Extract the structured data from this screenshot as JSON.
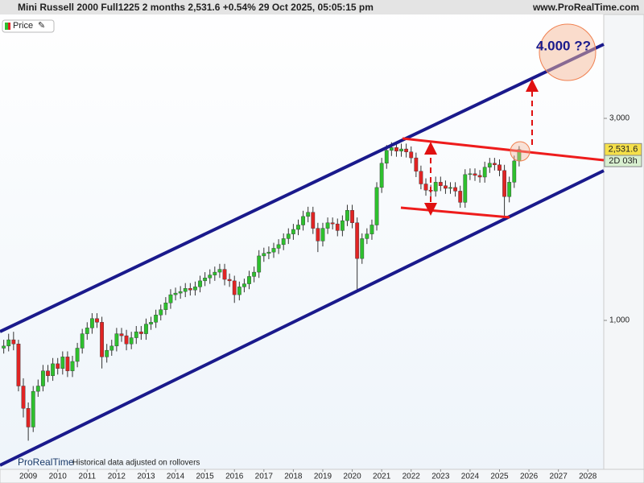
{
  "chart_data": {
    "type": "candlestick",
    "title": "Mini Russell 2000 Full1225 2 months 2,531.6 +0.54% 29 Oct 2025, 05:05:15 pm",
    "site": "www.ProRealTime.com",
    "legend_label": "Price",
    "brand": "ProRealTime",
    "note": "Historical data adjusted on rollovers",
    "annotation": "4.000 ??",
    "last_close_label": "2,531.6",
    "countdown": "2D 03h",
    "log_scale": true,
    "up_color": "#2ec02e",
    "down_color": "#e02424",
    "xlim": [
      2008.04,
      2028.54
    ],
    "xticks": [
      2009,
      2010,
      2011,
      2012,
      2013,
      2014,
      2015,
      2016,
      2017,
      2018,
      2019,
      2020,
      2021,
      2022,
      2023,
      2024,
      2025,
      2026,
      2027,
      2028
    ],
    "ylim": [
      445,
      5277
    ],
    "yticks": [
      {
        "value": 1000,
        "label": "1,000"
      },
      {
        "value": 3000,
        "label": "3,000"
      }
    ],
    "x": [
      2008.167,
      2008.333,
      2008.5,
      2008.667,
      2008.833,
      2009,
      2009.167,
      2009.333,
      2009.5,
      2009.667,
      2009.833,
      2010,
      2010.167,
      2010.333,
      2010.5,
      2010.667,
      2010.833,
      2011,
      2011.167,
      2011.333,
      2011.5,
      2011.667,
      2011.833,
      2012,
      2012.167,
      2012.333,
      2012.5,
      2012.667,
      2012.833,
      2013,
      2013.167,
      2013.333,
      2013.5,
      2013.667,
      2013.833,
      2014,
      2014.167,
      2014.333,
      2014.5,
      2014.667,
      2014.833,
      2015,
      2015.167,
      2015.333,
      2015.5,
      2015.667,
      2015.833,
      2016,
      2016.167,
      2016.333,
      2016.5,
      2016.667,
      2016.833,
      2017,
      2017.167,
      2017.333,
      2017.5,
      2017.667,
      2017.833,
      2018,
      2018.167,
      2018.333,
      2018.5,
      2018.667,
      2018.833,
      2019,
      2019.167,
      2019.333,
      2019.5,
      2019.667,
      2019.833,
      2020,
      2020.167,
      2020.333,
      2020.5,
      2020.667,
      2020.833,
      2021,
      2021.167,
      2021.333,
      2021.5,
      2021.667,
      2021.833,
      2022,
      2022.167,
      2022.333,
      2022.5,
      2022.667,
      2022.833,
      2023,
      2023.167,
      2023.333,
      2023.5,
      2023.667,
      2023.833,
      2024,
      2024.167,
      2024.333,
      2024.5,
      2024.667,
      2024.833,
      2025,
      2025.167,
      2025.333,
      2025.5,
      2025.667
    ],
    "open": [
      860,
      870,
      900,
      880,
      700,
      620,
      560,
      680,
      700,
      760,
      740,
      790,
      770,
      820,
      760,
      800,
      860,
      930,
      960,
      1010,
      990,
      820,
      850,
      870,
      930,
      920,
      880,
      910,
      940,
      930,
      980,
      990,
      1030,
      1060,
      1100,
      1150,
      1160,
      1170,
      1190,
      1180,
      1200,
      1240,
      1260,
      1280,
      1300,
      1320,
      1250,
      1240,
      1150,
      1200,
      1220,
      1270,
      1300,
      1420,
      1440,
      1450,
      1480,
      1510,
      1560,
      1600,
      1640,
      1680,
      1760,
      1800,
      1650,
      1540,
      1650,
      1700,
      1690,
      1630,
      1720,
      1820,
      1700,
      1400,
      1560,
      1600,
      1680,
      2060,
      2350,
      2520,
      2560,
      2510,
      2540,
      2500,
      2420,
      2250,
      2100,
      2030,
      2020,
      2120,
      2080,
      2050,
      2060,
      2020,
      1900,
      2210,
      2220,
      2200,
      2180,
      2300,
      2350,
      2330,
      2260,
      1960,
      2120,
      2380
    ],
    "high": [
      900,
      930,
      940,
      900,
      730,
      640,
      700,
      725,
      785,
      785,
      815,
      815,
      845,
      845,
      825,
      885,
      955,
      990,
      1040,
      1040,
      1020,
      880,
      900,
      960,
      960,
      950,
      940,
      970,
      970,
      1010,
      1020,
      1060,
      1090,
      1135,
      1185,
      1195,
      1205,
      1225,
      1225,
      1235,
      1275,
      1300,
      1320,
      1340,
      1360,
      1360,
      1290,
      1275,
      1235,
      1255,
      1310,
      1340,
      1465,
      1485,
      1495,
      1525,
      1555,
      1605,
      1650,
      1690,
      1730,
      1815,
      1855,
      1855,
      1700,
      1700,
      1750,
      1750,
      1740,
      1770,
      1875,
      1875,
      1750,
      1605,
      1650,
      1730,
      2120,
      2420,
      2595,
      2635,
      2635,
      2615,
      2615,
      2575,
      2490,
      2320,
      2165,
      2090,
      2185,
      2185,
      2140,
      2120,
      2120,
      2080,
      2275,
      2285,
      2285,
      2265,
      2370,
      2420,
      2420,
      2400,
      2330,
      2185,
      2450,
      2580
    ],
    "low": [
      835,
      845,
      850,
      680,
      590,
      520,
      545,
      660,
      680,
      715,
      720,
      745,
      745,
      735,
      735,
      775,
      835,
      900,
      930,
      960,
      770,
      795,
      825,
      845,
      890,
      850,
      855,
      880,
      900,
      900,
      950,
      960,
      1000,
      1030,
      1065,
      1115,
      1125,
      1135,
      1145,
      1145,
      1165,
      1205,
      1220,
      1240,
      1260,
      1210,
      1200,
      1100,
      1115,
      1165,
      1185,
      1230,
      1260,
      1375,
      1395,
      1405,
      1435,
      1465,
      1515,
      1550,
      1590,
      1630,
      1705,
      1600,
      1450,
      1495,
      1600,
      1640,
      1580,
      1580,
      1670,
      1650,
      1170,
      1360,
      1515,
      1550,
      1630,
      2000,
      2280,
      2445,
      2435,
      2435,
      2425,
      2350,
      2180,
      2040,
      1970,
      1960,
      1960,
      2020,
      1990,
      1990,
      1960,
      1845,
      1845,
      2145,
      2135,
      2115,
      2115,
      2230,
      2260,
      2190,
      1750,
      1900,
      2055,
      2310
    ],
    "close": [
      870,
      900,
      880,
      700,
      620,
      560,
      680,
      700,
      760,
      740,
      790,
      770,
      820,
      760,
      800,
      860,
      930,
      960,
      1010,
      990,
      820,
      850,
      870,
      930,
      920,
      880,
      910,
      940,
      930,
      980,
      990,
      1030,
      1060,
      1100,
      1150,
      1160,
      1170,
      1190,
      1180,
      1200,
      1240,
      1260,
      1280,
      1300,
      1320,
      1250,
      1240,
      1150,
      1200,
      1220,
      1270,
      1300,
      1420,
      1440,
      1450,
      1480,
      1510,
      1560,
      1600,
      1640,
      1680,
      1760,
      1800,
      1650,
      1540,
      1650,
      1700,
      1690,
      1630,
      1720,
      1820,
      1700,
      1400,
      1560,
      1600,
      1680,
      2060,
      2350,
      2520,
      2560,
      2510,
      2540,
      2500,
      2420,
      2250,
      2100,
      2030,
      2020,
      2120,
      2080,
      2050,
      2060,
      2020,
      1900,
      2210,
      2220,
      2200,
      2180,
      2300,
      2350,
      2330,
      2260,
      1960,
      2120,
      2380,
      2531.6
    ]
  }
}
